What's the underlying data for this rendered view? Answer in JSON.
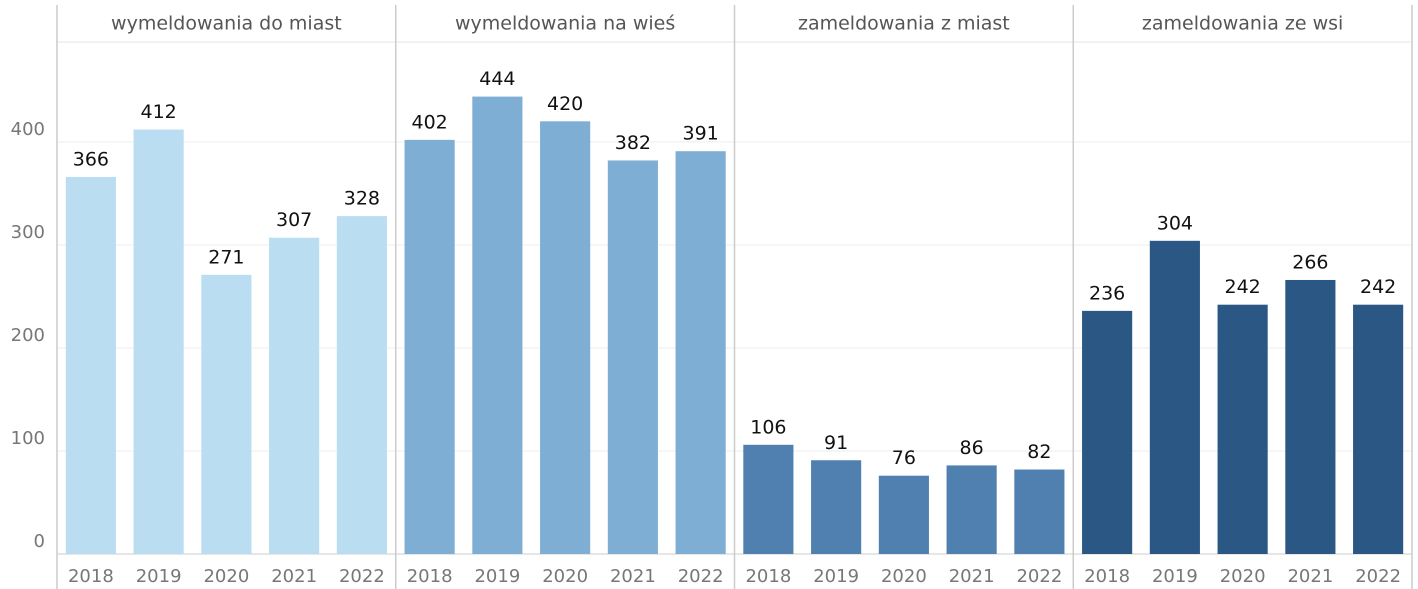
{
  "chart_data": {
    "type": "bar",
    "categories": [
      "2018",
      "2019",
      "2020",
      "2021",
      "2022"
    ],
    "series": [
      {
        "name": "wymeldowania do miast",
        "color": "#bbddf1",
        "values": [
          366,
          412,
          271,
          307,
          328
        ]
      },
      {
        "name": "wymeldowania na wieś",
        "color": "#7faed4",
        "values": [
          402,
          444,
          420,
          382,
          391
        ]
      },
      {
        "name": "zameldowania z miast",
        "color": "#4f80b0",
        "values": [
          106,
          91,
          76,
          86,
          82
        ]
      },
      {
        "name": "zameldowania ze wsi",
        "color": "#2b5784",
        "values": [
          236,
          304,
          242,
          266,
          242
        ]
      }
    ],
    "ylim": [
      0,
      497
    ],
    "yticks": [
      0,
      100,
      200,
      300,
      400
    ],
    "grid": true
  }
}
